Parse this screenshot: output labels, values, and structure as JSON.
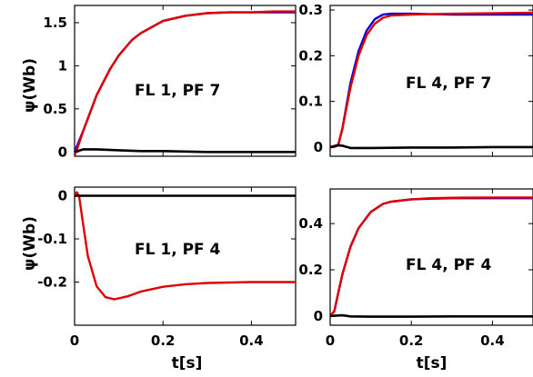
{
  "chart_data": [
    {
      "type": "line",
      "annotation": "FL 1, PF 7",
      "ylabel": "ψ(Wb)",
      "xlabel": "",
      "xlim": [
        0,
        0.5
      ],
      "ylim": [
        -0.05,
        1.7
      ],
      "yticks": [
        0,
        0.5,
        1,
        1.5
      ],
      "ytick_labels": [
        "0",
        "0.5",
        "1",
        "1.5"
      ],
      "xticks": [],
      "xtick_labels": [],
      "series": [
        {
          "color": "#0000dd",
          "x": [
            0,
            0.02,
            0.05,
            0.08,
            0.1,
            0.13,
            0.15,
            0.2,
            0.25,
            0.3,
            0.35,
            0.4,
            0.45,
            0.5
          ],
          "y": [
            0,
            0.25,
            0.66,
            0.96,
            1.12,
            1.3,
            1.38,
            1.52,
            1.58,
            1.61,
            1.62,
            1.62,
            1.62,
            1.62
          ]
        },
        {
          "color": "#e00000",
          "x": [
            0,
            0.005,
            0.02,
            0.05,
            0.08,
            0.1,
            0.13,
            0.15,
            0.2,
            0.25,
            0.3,
            0.35,
            0.4,
            0.45,
            0.5
          ],
          "y": [
            -0.04,
            0.02,
            0.25,
            0.66,
            0.96,
            1.12,
            1.3,
            1.38,
            1.52,
            1.58,
            1.61,
            1.62,
            1.62,
            1.63,
            1.63
          ]
        },
        {
          "color": "#000000",
          "x": [
            0,
            0.02,
            0.05,
            0.1,
            0.15,
            0.2,
            0.3,
            0.4,
            0.5
          ],
          "y": [
            0,
            0.03,
            0.03,
            0.02,
            0.01,
            0.01,
            0,
            0,
            0
          ]
        }
      ]
    },
    {
      "type": "line",
      "annotation": "FL 4, PF 7",
      "ylabel": "",
      "xlabel": "",
      "xlim": [
        0,
        0.5
      ],
      "ylim": [
        -0.02,
        0.31
      ],
      "yticks": [
        0,
        0.1,
        0.2,
        0.3
      ],
      "ytick_labels": [
        "0",
        "0.1",
        "0.2",
        "0.3"
      ],
      "xticks": [],
      "xtick_labels": [],
      "series": [
        {
          "color": "#0000dd",
          "x": [
            0,
            0.02,
            0.03,
            0.05,
            0.07,
            0.09,
            0.11,
            0.13,
            0.15,
            0.2,
            0.3,
            0.4,
            0.5
          ],
          "y": [
            0,
            0.005,
            0.04,
            0.14,
            0.21,
            0.255,
            0.28,
            0.29,
            0.292,
            0.292,
            0.29,
            0.29,
            0.29
          ]
        },
        {
          "color": "#e00000",
          "x": [
            0,
            0.02,
            0.03,
            0.05,
            0.07,
            0.09,
            0.11,
            0.13,
            0.15,
            0.2,
            0.3,
            0.4,
            0.5
          ],
          "y": [
            0,
            0.005,
            0.04,
            0.13,
            0.2,
            0.245,
            0.27,
            0.283,
            0.288,
            0.29,
            0.292,
            0.293,
            0.294
          ]
        },
        {
          "color": "#000000",
          "x": [
            0,
            0.01,
            0.02,
            0.03,
            0.05,
            0.1,
            0.2,
            0.3,
            0.4,
            0.5
          ],
          "y": [
            0,
            0.001,
            0.004,
            0.003,
            -0.002,
            -0.002,
            -0.001,
            -0.001,
            0,
            0
          ]
        }
      ]
    },
    {
      "type": "line",
      "annotation": "FL 1, PF 4",
      "ylabel": "ψ(Wb)",
      "xlabel": "t[s]",
      "xlim": [
        0,
        0.5
      ],
      "ylim": [
        -0.3,
        0.02
      ],
      "yticks": [
        0,
        -0.1,
        -0.2
      ],
      "ytick_labels": [
        "0",
        "-0.1",
        "-0.2"
      ],
      "xticks": [
        0,
        0.2,
        0.4
      ],
      "xtick_labels": [
        "0",
        "0.2",
        "0.4"
      ],
      "series": [
        {
          "color": "#e00000",
          "x": [
            0,
            0.005,
            0.01,
            0.02,
            0.03,
            0.05,
            0.07,
            0.09,
            0.12,
            0.15,
            0.2,
            0.25,
            0.3,
            0.35,
            0.4,
            0.45,
            0.5
          ],
          "y": [
            0,
            0.008,
            0,
            -0.07,
            -0.14,
            -0.21,
            -0.235,
            -0.24,
            -0.233,
            -0.222,
            -0.211,
            -0.205,
            -0.202,
            -0.201,
            -0.2,
            -0.2,
            -0.2
          ]
        },
        {
          "color": "#000000",
          "x": [
            0,
            0.01,
            0.02,
            0.1,
            0.2,
            0.3,
            0.4,
            0.5
          ],
          "y": [
            0,
            0,
            0,
            0,
            0,
            0,
            0,
            0
          ]
        }
      ]
    },
    {
      "type": "line",
      "annotation": "FL 4, PF 4",
      "ylabel": "",
      "xlabel": "t[s]",
      "xlim": [
        0,
        0.5
      ],
      "ylim": [
        -0.04,
        0.55
      ],
      "yticks": [
        0,
        0.2,
        0.4
      ],
      "ytick_labels": [
        "0",
        "0.2",
        "0.4"
      ],
      "xticks": [
        0,
        0.2,
        0.4
      ],
      "xtick_labels": [
        "0",
        "0.2",
        "0.4"
      ],
      "series": [
        {
          "color": "#0000dd",
          "x": [
            0,
            0.01,
            0.02,
            0.03,
            0.05,
            0.07,
            0.1,
            0.13,
            0.15,
            0.2,
            0.25,
            0.3,
            0.4,
            0.5
          ],
          "y": [
            0,
            0.02,
            0.1,
            0.18,
            0.3,
            0.38,
            0.45,
            0.485,
            0.495,
            0.505,
            0.508,
            0.51,
            0.51,
            0.51
          ]
        },
        {
          "color": "#e00000",
          "x": [
            0,
            0.01,
            0.02,
            0.03,
            0.05,
            0.07,
            0.1,
            0.13,
            0.15,
            0.2,
            0.25,
            0.3,
            0.4,
            0.5
          ],
          "y": [
            0,
            0.02,
            0.1,
            0.18,
            0.3,
            0.38,
            0.45,
            0.485,
            0.495,
            0.505,
            0.51,
            0.512,
            0.513,
            0.513
          ]
        },
        {
          "color": "#000000",
          "x": [
            0,
            0.02,
            0.03,
            0.05,
            0.1,
            0.2,
            0.3,
            0.4,
            0.5
          ],
          "y": [
            0,
            0.002,
            0.003,
            -0.002,
            -0.003,
            -0.003,
            -0.002,
            -0.002,
            -0.002
          ]
        }
      ]
    }
  ]
}
